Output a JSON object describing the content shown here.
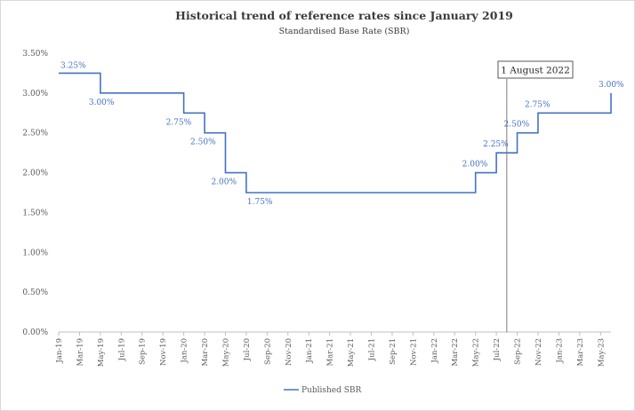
{
  "chart_data": {
    "type": "line",
    "step": true,
    "title": "Historical trend of reference rates since January 2019",
    "subtitle": "Standardised Base Rate (SBR)",
    "xlabel": "",
    "ylabel": "",
    "ylim": [
      0,
      3.5
    ],
    "yticks": [
      "0.00%",
      "0.50%",
      "1.00%",
      "1.50%",
      "2.00%",
      "2.50%",
      "3.00%",
      "3.50%"
    ],
    "xticks": [
      "Jan-19",
      "Mar-19",
      "May-19",
      "Jul-19",
      "Sep-19",
      "Nov-19",
      "Jan-20",
      "Mar-20",
      "May-20",
      "Jul-20",
      "Sep-20",
      "Nov-20",
      "Jan-21",
      "Mar-21",
      "May-21",
      "Jul-21",
      "Sep-21",
      "Nov-21",
      "Jan-22",
      "Mar-22",
      "May-22",
      "Jul-22",
      "Sep-22",
      "Nov-22",
      "Jan-23",
      "Mar-23",
      "May-23"
    ],
    "grid": false,
    "legend_position": "bottom",
    "line_color": "#4472c4",
    "series": [
      {
        "name": "Published SBR",
        "points": [
          {
            "x": "Jan-19",
            "y": 3.25
          },
          {
            "x": "May-19",
            "y": 3.0
          },
          {
            "x": "Jan-20",
            "y": 2.75
          },
          {
            "x": "Mar-20",
            "y": 2.5
          },
          {
            "x": "May-20",
            "y": 2.0
          },
          {
            "x": "Jul-20",
            "y": 1.75
          },
          {
            "x": "May-22",
            "y": 2.0
          },
          {
            "x": "Jul-22",
            "y": 2.25
          },
          {
            "x": "Sep-22",
            "y": 2.5
          },
          {
            "x": "Nov-22",
            "y": 2.75
          },
          {
            "x": "Jun-23",
            "y": 3.0
          }
        ],
        "x_end": "Jun-23",
        "labels": [
          "3.25%",
          "3.00%",
          "2.75%",
          "2.50%",
          "2.00%",
          "1.75%",
          "2.00%",
          "2.25%",
          "2.50%",
          "2.75%",
          "3.00%"
        ]
      }
    ],
    "annotation": {
      "text": "1 August 2022",
      "x": "Aug-22"
    }
  }
}
